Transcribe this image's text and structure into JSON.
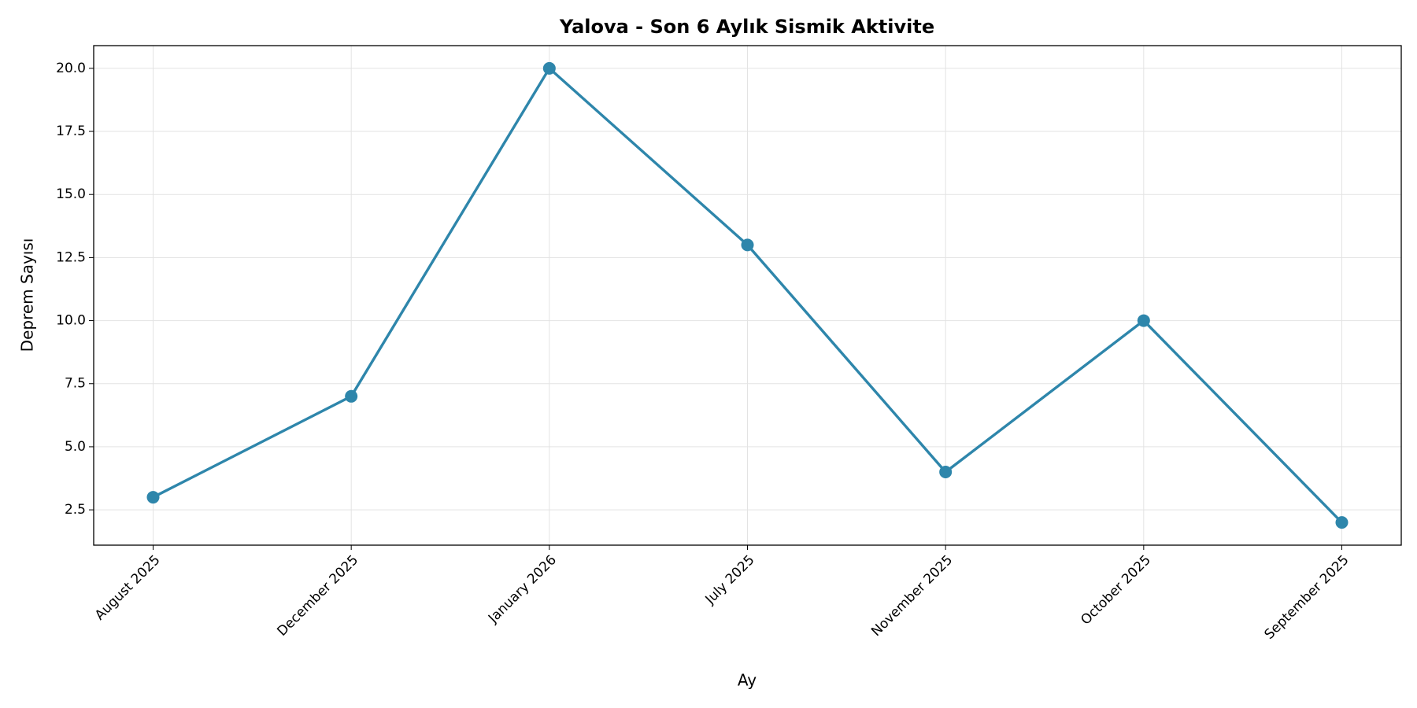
{
  "chart_data": {
    "type": "line",
    "title": "Yalova - Son 6 Aylık Sismik Aktivite",
    "xlabel": "Ay",
    "ylabel": "Deprem Sayısı",
    "categories": [
      "August 2025",
      "December 2025",
      "January 2026",
      "July 2025",
      "November 2025",
      "October 2025",
      "September 2025"
    ],
    "series": [
      {
        "color": "#2e86ab",
        "values": [
          3,
          7,
          20,
          13,
          4,
          10,
          2
        ]
      }
    ],
    "ylim": [
      1.1,
      20.9
    ],
    "yticks": [
      2.5,
      {
        "value": 5,
        "label": "5.0"
      },
      7.5,
      {
        "value": 10,
        "label": "10.0"
      },
      12.5,
      {
        "value": 15,
        "label": "15.0"
      },
      17.5,
      {
        "value": 20,
        "label": "20.0"
      }
    ],
    "grid": true
  }
}
